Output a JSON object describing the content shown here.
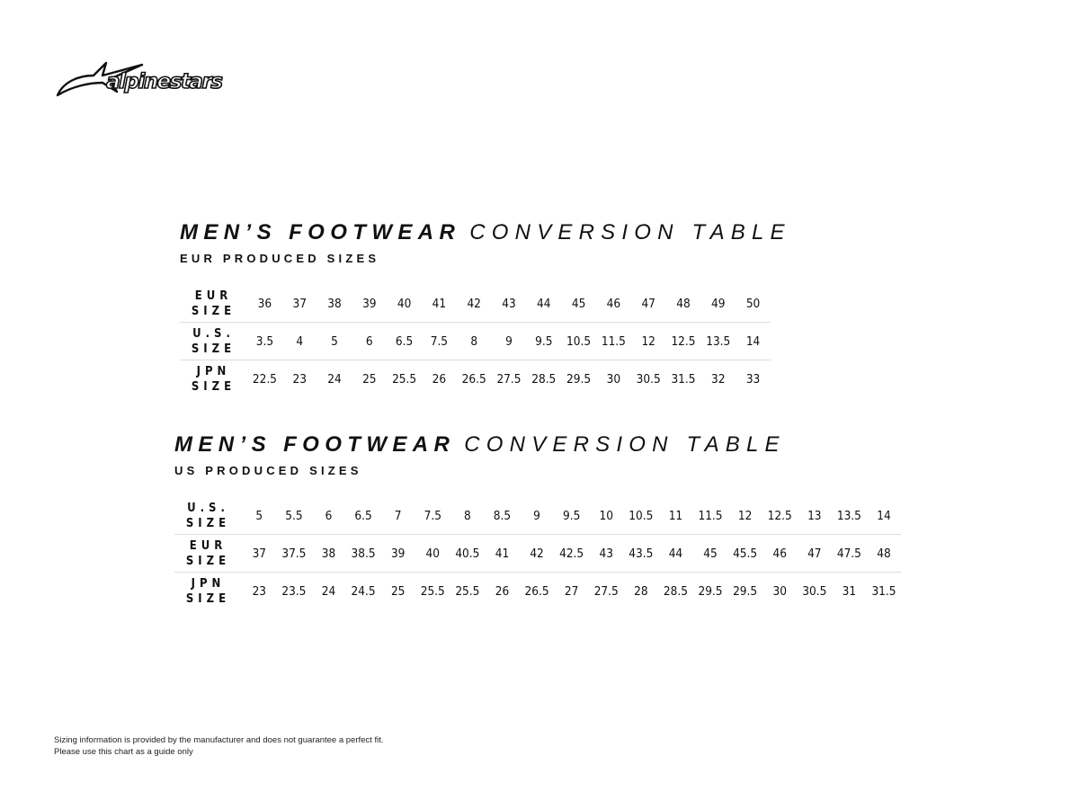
{
  "logo": {
    "text": "alpinestars",
    "icon": "astar-icon"
  },
  "tables": [
    {
      "title_bold": "MEN’S FOOTWEAR",
      "title_light": "CONVERSION TABLE",
      "subtitle": "EUR PRODUCED SIZES",
      "rows": [
        {
          "label": [
            "EUR",
            "SIZE"
          ],
          "values": [
            "36",
            "37",
            "38",
            "39",
            "40",
            "41",
            "42",
            "43",
            "44",
            "45",
            "46",
            "47",
            "48",
            "49",
            "50"
          ]
        },
        {
          "label": [
            "U.S.",
            "SIZE"
          ],
          "values": [
            "3.5",
            "4",
            "5",
            "6",
            "6.5",
            "7.5",
            "8",
            "9",
            "9.5",
            "10.5",
            "11.5",
            "12",
            "12.5",
            "13.5",
            "14"
          ]
        },
        {
          "label": [
            "JPN",
            "SIZE"
          ],
          "values": [
            "22.5",
            "23",
            "24",
            "25",
            "25.5",
            "26",
            "26.5",
            "27.5",
            "28.5",
            "29.5",
            "30",
            "30.5",
            "31.5",
            "32",
            "33"
          ]
        }
      ]
    },
    {
      "title_bold": "MEN’S FOOTWEAR",
      "title_light": "CONVERSION TABLE",
      "subtitle": "US PRODUCED SIZES",
      "rows": [
        {
          "label": [
            "U.S.",
            "SIZE"
          ],
          "values": [
            "5",
            "5.5",
            "6",
            "6.5",
            "7",
            "7.5",
            "8",
            "8.5",
            "9",
            "9.5",
            "10",
            "10.5",
            "11",
            "11.5",
            "12",
            "12.5",
            "13",
            "13.5",
            "14"
          ]
        },
        {
          "label": [
            "EUR",
            "SIZE"
          ],
          "values": [
            "37",
            "37.5",
            "38",
            "38.5",
            "39",
            "40",
            "40.5",
            "41",
            "42",
            "42.5",
            "43",
            "43.5",
            "44",
            "45",
            "45.5",
            "46",
            "47",
            "47.5",
            "48"
          ]
        },
        {
          "label": [
            "JPN",
            "SIZE"
          ],
          "values": [
            "23",
            "23.5",
            "24",
            "24.5",
            "25",
            "25.5",
            "25.5",
            "26",
            "26.5",
            "27",
            "27.5",
            "28",
            "28.5",
            "29.5",
            "29.5",
            "30",
            "30.5",
            "31",
            "31.5"
          ]
        }
      ]
    }
  ],
  "footer": {
    "line1": "Sizing information is provided by the manufacturer and does not guarantee a perfect fit.",
    "line2": "Please use this chart as a guide only"
  }
}
